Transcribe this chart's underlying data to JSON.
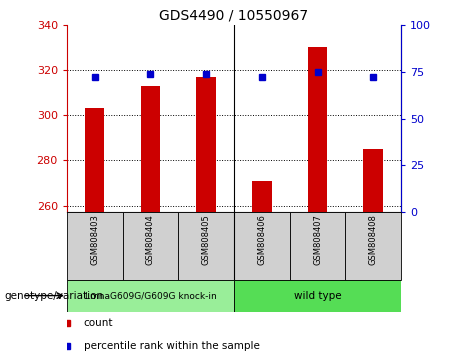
{
  "title": "GDS4490 / 10550967",
  "samples": [
    "GSM808403",
    "GSM808404",
    "GSM808405",
    "GSM808406",
    "GSM808407",
    "GSM808408"
  ],
  "counts": [
    303,
    313,
    317,
    271,
    330,
    285
  ],
  "percentile_ranks": [
    72,
    74,
    74,
    72,
    75,
    72
  ],
  "ylim_left": [
    257,
    340
  ],
  "ylim_right": [
    0,
    100
  ],
  "yticks_left": [
    260,
    280,
    300,
    320,
    340
  ],
  "yticks_right": [
    0,
    25,
    50,
    75,
    100
  ],
  "bar_color": "#cc0000",
  "dot_color": "#0000cc",
  "group1_label": "LmnaG609G/G609G knock-in",
  "group2_label": "wild type",
  "group1_color": "#99ee99",
  "group2_color": "#55dd55",
  "legend_count_label": "count",
  "legend_pct_label": "percentile rank within the sample",
  "genotype_label": "genotype/variation",
  "bar_bottom": 257,
  "grid_color": "#000000",
  "sample_box_color": "#d0d0d0",
  "bar_width": 0.35
}
